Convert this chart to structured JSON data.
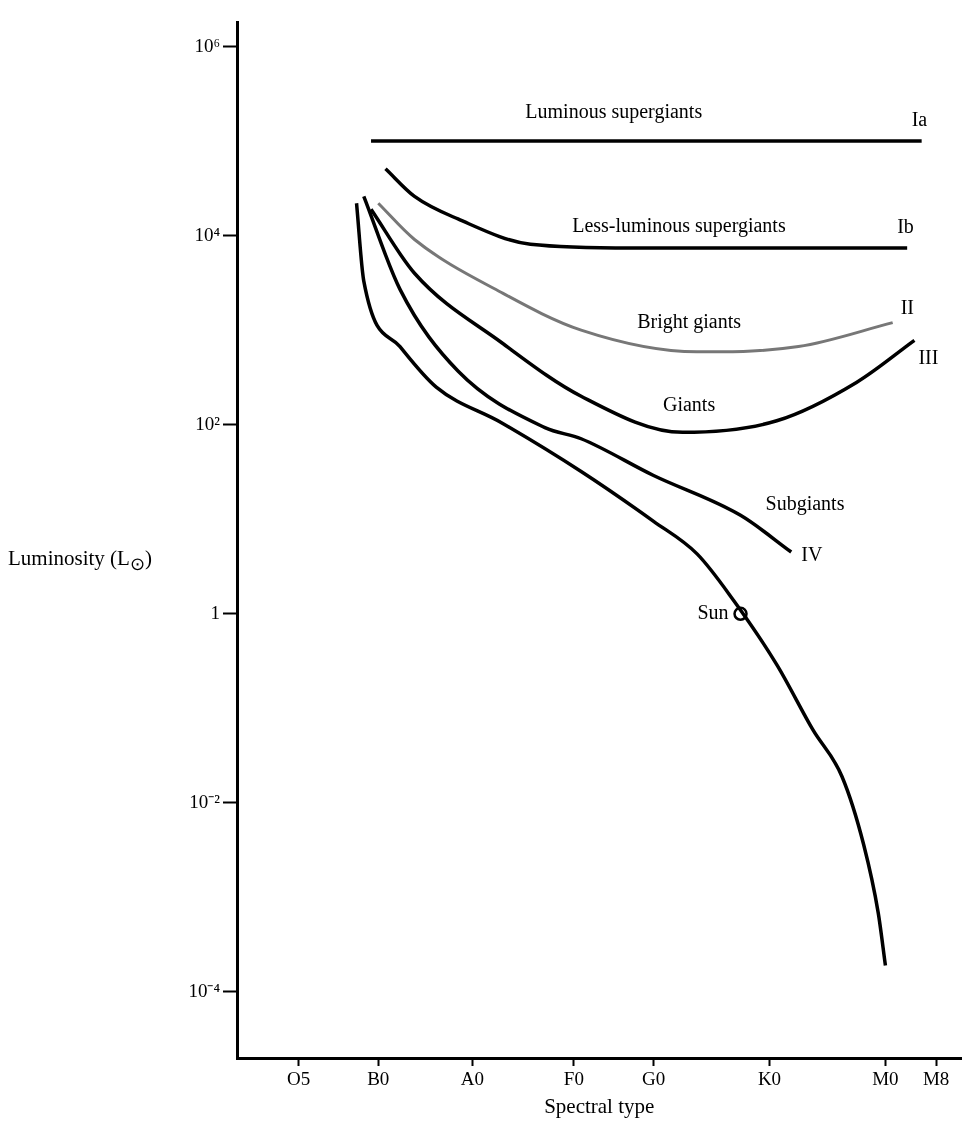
{
  "chart_data": {
    "type": "line",
    "xlabel": "Spectral type",
    "ylabel": "Luminosity (L$_{⊙}$)",
    "log": "y",
    "marker": "none",
    "ylim": [
      2e-05,
      1800000
    ],
    "categories": [
      null,
      null,
      null,
      null,
      null,
      null,
      null,
      null,
      "O5",
      null,
      null,
      null,
      null,
      null,
      null,
      null,
      null,
      null,
      null,
      "B0",
      null,
      null,
      null,
      null,
      null,
      null,
      null,
      null,
      null,
      null,
      null,
      null,
      "A0",
      null,
      null,
      null,
      null,
      null,
      null,
      null,
      null,
      null,
      null,
      null,
      null,
      null,
      "F0",
      null,
      null,
      null,
      null,
      null,
      null,
      null,
      null,
      null,
      null,
      "G0",
      null,
      null,
      null,
      null,
      null,
      null,
      null,
      null,
      null,
      null,
      null,
      null,
      null,
      null,
      null,
      "K0",
      null,
      null,
      null,
      null,
      null,
      null,
      null,
      null,
      null,
      null,
      null,
      null,
      null,
      null,
      null,
      "M0",
      null,
      null,
      null,
      null,
      null,
      null,
      "M8",
      null,
      null,
      null
    ],
    "yticks": [
      {
        "value": 1000000,
        "label": "10⁶"
      },
      {
        "value": 10000,
        "label": "10⁴"
      },
      {
        "value": 100,
        "label": "10²"
      },
      {
        "value": 1,
        "label": "1"
      },
      {
        "value": 0.01,
        "label": "10⁻²"
      },
      {
        "value": 0.0001,
        "label": "10⁻⁴"
      }
    ],
    "series": [
      {
        "name": "Ia",
        "color": "#000000",
        "values": [
          null,
          null,
          null,
          null,
          null,
          null,
          null,
          null,
          null,
          null,
          null,
          null,
          null,
          null,
          null,
          null,
          null,
          null,
          100000,
          null,
          null,
          null,
          null,
          null,
          null,
          null,
          null,
          null,
          null,
          null,
          null,
          null,
          null,
          null,
          null,
          null,
          null,
          null,
          null,
          null,
          null,
          null,
          null,
          null,
          null,
          null,
          null,
          null,
          null,
          null,
          null,
          null,
          null,
          null,
          null,
          null,
          null,
          null,
          null,
          null,
          null,
          null,
          null,
          null,
          null,
          null,
          null,
          null,
          null,
          null,
          null,
          null,
          null,
          null,
          null,
          null,
          null,
          null,
          null,
          null,
          null,
          null,
          null,
          null,
          null,
          null,
          null,
          null,
          null,
          null,
          null,
          null,
          null,
          null,
          100000,
          null,
          null,
          null,
          null,
          null
        ]
      },
      {
        "name": "Ib",
        "color": "#000000",
        "values": [
          null,
          null,
          null,
          null,
          null,
          null,
          null,
          null,
          null,
          null,
          null,
          null,
          null,
          null,
          null,
          null,
          null,
          null,
          null,
          null,
          51000,
          null,
          null,
          null,
          26000,
          null,
          null,
          null,
          null,
          null,
          15000,
          null,
          null,
          null,
          null,
          null,
          null,
          null,
          null,
          null,
          8100,
          null,
          null,
          null,
          null,
          null,
          null,
          null,
          null,
          null,
          null,
          null,
          null,
          null,
          7400,
          null,
          null,
          null,
          null,
          null,
          null,
          null,
          null,
          null,
          null,
          null,
          null,
          null,
          null,
          null,
          null,
          null,
          null,
          null,
          null,
          null,
          null,
          null,
          null,
          null,
          null,
          null,
          null,
          null,
          null,
          null,
          null,
          null,
          null,
          null,
          null,
          null,
          7400,
          null,
          null,
          null,
          null,
          null,
          null,
          null
        ]
      },
      {
        "name": "II",
        "color": "#777777",
        "values": [
          null,
          null,
          null,
          null,
          null,
          null,
          null,
          null,
          null,
          null,
          null,
          null,
          null,
          null,
          null,
          null,
          null,
          null,
          null,
          22000,
          null,
          null,
          null,
          null,
          9100,
          null,
          null,
          null,
          null,
          null,
          null,
          null,
          null,
          null,
          null,
          null,
          2500,
          null,
          null,
          null,
          null,
          null,
          null,
          null,
          null,
          null,
          null,
          1000,
          null,
          null,
          null,
          null,
          null,
          null,
          null,
          null,
          null,
          null,
          null,
          null,
          null,
          null,
          null,
          590,
          null,
          null,
          null,
          null,
          null,
          null,
          null,
          null,
          null,
          null,
          null,
          null,
          null,
          670,
          null,
          null,
          null,
          null,
          null,
          null,
          null,
          null,
          null,
          null,
          null,
          null,
          1200,
          null,
          null,
          null,
          null,
          null,
          null,
          null,
          null,
          null
        ]
      },
      {
        "name": "III",
        "color": "#000000",
        "values": [
          null,
          null,
          null,
          null,
          null,
          null,
          null,
          null,
          null,
          null,
          null,
          null,
          null,
          null,
          null,
          null,
          null,
          null,
          19000,
          null,
          null,
          null,
          null,
          null,
          4000,
          null,
          null,
          null,
          null,
          null,
          null,
          null,
          null,
          null,
          null,
          null,
          740,
          null,
          null,
          null,
          null,
          null,
          null,
          null,
          null,
          null,
          null,
          200,
          null,
          null,
          null,
          null,
          null,
          null,
          null,
          null,
          null,
          null,
          null,
          null,
          null,
          83,
          null,
          null,
          null,
          null,
          null,
          null,
          null,
          null,
          null,
          null,
          null,
          null,
          110,
          null,
          null,
          null,
          null,
          null,
          null,
          null,
          null,
          null,
          null,
          280,
          null,
          null,
          null,
          null,
          null,
          null,
          null,
          780,
          null,
          null,
          null,
          null,
          null,
          null
        ]
      },
      {
        "name": "IV",
        "color": "#000000",
        "values": [
          null,
          null,
          null,
          null,
          null,
          null,
          null,
          null,
          null,
          null,
          null,
          null,
          null,
          null,
          null,
          null,
          null,
          26000,
          null,
          null,
          null,
          null,
          2700,
          null,
          null,
          null,
          null,
          null,
          null,
          null,
          370,
          null,
          null,
          null,
          null,
          null,
          null,
          null,
          null,
          null,
          null,
          null,
          93,
          null,
          null,
          null,
          null,
          71,
          null,
          null,
          null,
          null,
          null,
          null,
          null,
          null,
          null,
          29,
          null,
          null,
          null,
          null,
          null,
          null,
          null,
          null,
          null,
          null,
          null,
          11,
          null,
          null,
          null,
          null,
          null,
          null,
          4.5,
          null,
          null,
          null,
          null,
          null,
          null,
          null,
          null,
          null,
          null,
          null,
          null,
          null,
          null,
          null,
          null,
          null,
          null,
          null,
          null,
          null,
          null,
          null
        ]
      },
      {
        "color": "#000000",
        "values": [
          null,
          null,
          null,
          null,
          null,
          null,
          null,
          null,
          null,
          null,
          null,
          null,
          null,
          null,
          null,
          null,
          22000,
          3300,
          null,
          null,
          null,
          null,
          670,
          null,
          null,
          null,
          null,
          250,
          null,
          null,
          null,
          null,
          null,
          null,
          null,
          null,
          105,
          null,
          null,
          null,
          null,
          null,
          null,
          null,
          null,
          null,
          null,
          32,
          null,
          null,
          null,
          null,
          null,
          null,
          null,
          null,
          null,
          9.5,
          null,
          null,
          null,
          null,
          null,
          4.3,
          null,
          null,
          null,
          null,
          1.4,
          null,
          null,
          null,
          null,
          null,
          0.29,
          null,
          null,
          null,
          null,
          0.059,
          null,
          null,
          null,
          0.019,
          null,
          null,
          0.0036,
          null,
          0.00069,
          0.00019,
          null,
          null,
          null,
          null,
          null,
          null,
          null,
          null,
          null,
          null
        ]
      },
      {
        "name": "Sun",
        "type": "scatter",
        "marker": "circle",
        "color": "#000000",
        "values": [
          null,
          null,
          null,
          null,
          null,
          null,
          null,
          null,
          null,
          null,
          null,
          null,
          null,
          null,
          null,
          null,
          null,
          null,
          null,
          null,
          null,
          null,
          null,
          null,
          null,
          null,
          null,
          null,
          null,
          null,
          null,
          null,
          null,
          null,
          null,
          null,
          null,
          null,
          null,
          null,
          null,
          null,
          null,
          null,
          null,
          null,
          null,
          null,
          null,
          null,
          null,
          null,
          null,
          null,
          null,
          null,
          null,
          null,
          null,
          null,
          null,
          null,
          null,
          null,
          null,
          null,
          null,
          null,
          null,
          1,
          null,
          null,
          null,
          null,
          null,
          null,
          null,
          null,
          null,
          null,
          null,
          null,
          null,
          null,
          null,
          null,
          null,
          null,
          null,
          null,
          null,
          null,
          null,
          null,
          null,
          null,
          null,
          null,
          null,
          null
        ]
      }
    ],
    "annotations": [
      "Luminous supergiants",
      "Less-luminous supergiants",
      "Bright giants",
      "Giants",
      "Subgiants"
    ]
  }
}
